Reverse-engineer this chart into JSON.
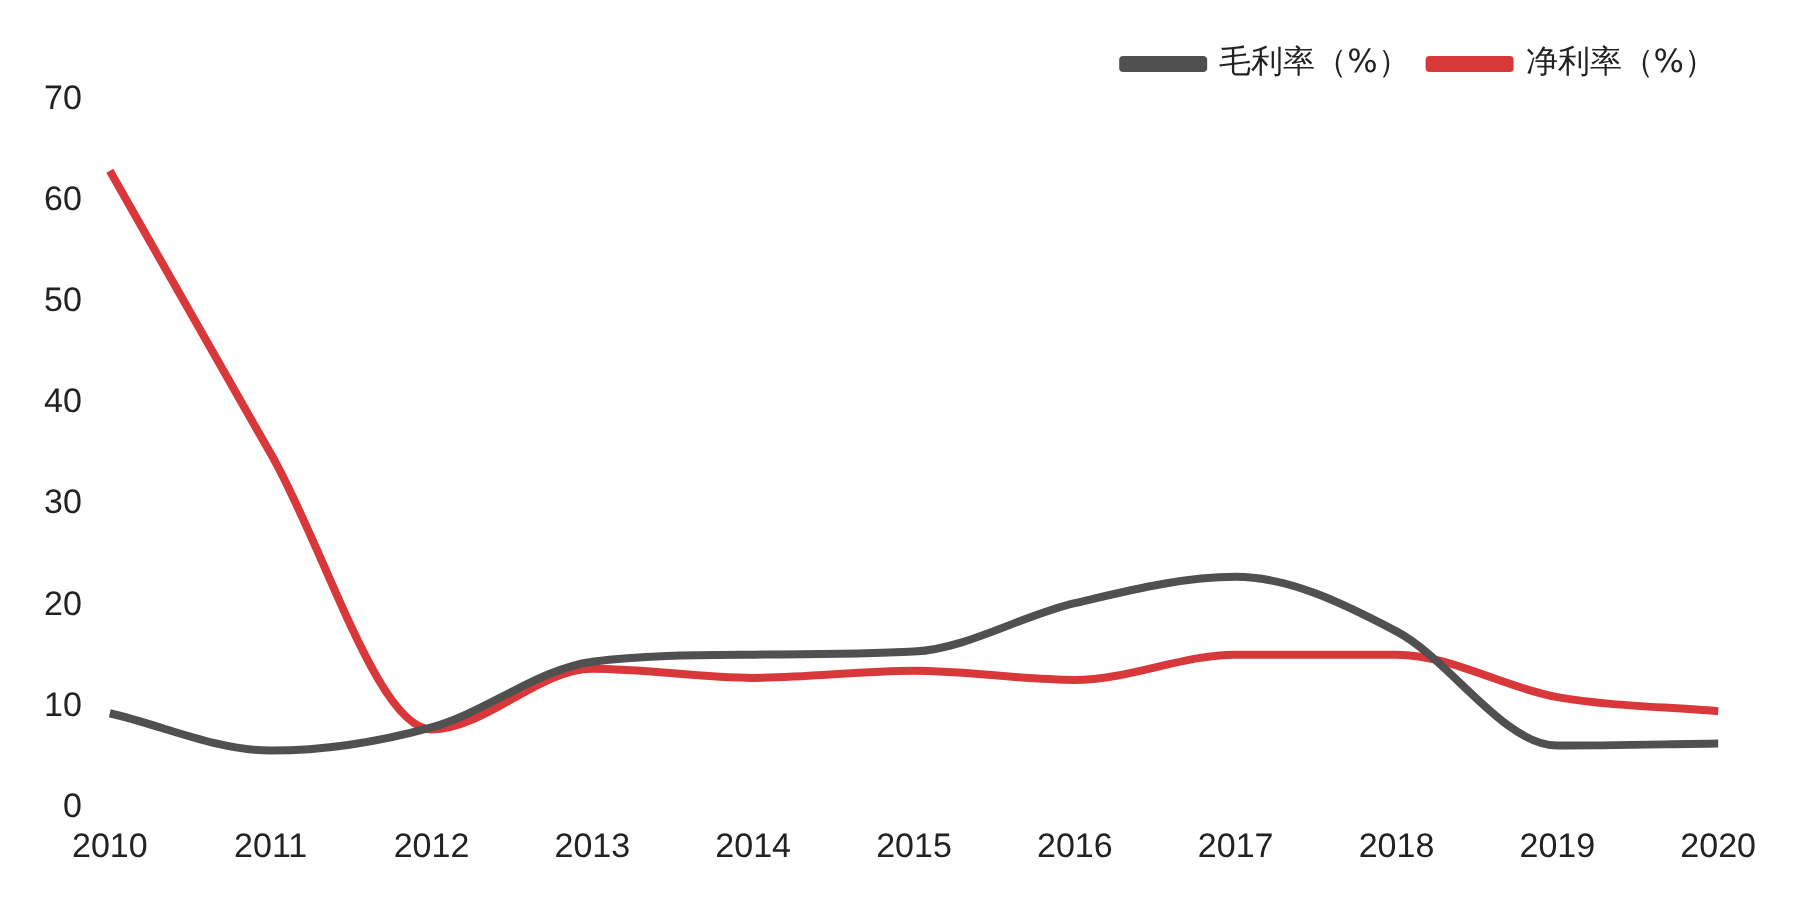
{
  "chart_data": {
    "type": "line",
    "categories": [
      "2010",
      "2011",
      "2012",
      "2013",
      "2014",
      "2015",
      "2016",
      "2017",
      "2018",
      "2019",
      "2020"
    ],
    "series": [
      {
        "name": "毛利率（%）",
        "color": "#505050",
        "values": [
          9.3,
          5.6,
          7.9,
          14.4,
          15.1,
          15.4,
          20.2,
          22.8,
          17.4,
          6.1,
          6.3
        ]
      },
      {
        "name": "净利率（%）",
        "color": "#d9383a",
        "values": [
          63,
          35,
          7.7,
          13.7,
          12.8,
          13.5,
          12.6,
          15.1,
          15.1,
          10.9,
          9.5
        ]
      }
    ],
    "ylim": [
      0,
      70
    ],
    "yticks": [
      0,
      10,
      20,
      30,
      40,
      50,
      60,
      70
    ],
    "grid": false,
    "legend": "top right",
    "marker": "none"
  }
}
